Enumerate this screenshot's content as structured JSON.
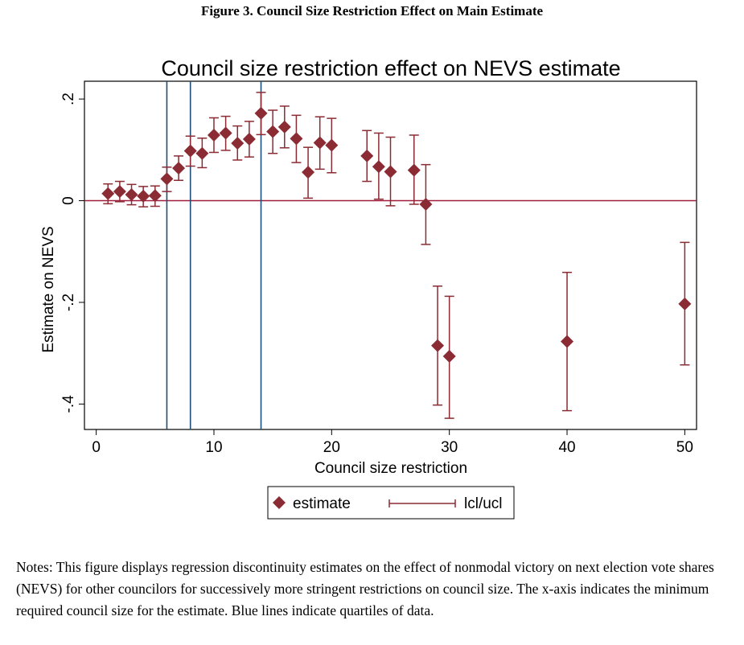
{
  "figure": {
    "caption": "Figure 3. Council Size Restriction Effect on Main Estimate",
    "notes": "Notes: This figure displays regression discontinuity estimates on the effect of nonmodal victory on next election vote shares (NEVS) for other councilors for successively more stringent restrictions on council size. The x-axis indicates the minimum required council size for the estimate. Blue lines indicate quartiles of data."
  },
  "chart_data": {
    "type": "scatter",
    "title": "Council size restriction effect on NEVS estimate",
    "xlabel": "Council size restriction",
    "ylabel": "Estimate on NEVS",
    "xlim": [
      -1,
      51
    ],
    "ylim": [
      -0.45,
      0.235
    ],
    "xticks": [
      0,
      10,
      20,
      30,
      40,
      50
    ],
    "xtick_labels": [
      "0",
      "10",
      "20",
      "30",
      "40",
      "50"
    ],
    "yticks": [
      0.2,
      0,
      -0.2,
      -0.4
    ],
    "ytick_labels": [
      ".2",
      "0",
      "-.2",
      "-.4"
    ],
    "zero_line": 0,
    "quartile_lines_x": [
      6,
      8,
      14
    ],
    "legend": {
      "placement": "bottom-center",
      "entries": [
        "estimate",
        "lcl/ucl"
      ]
    },
    "colors": {
      "marker": "#8b2b33",
      "ci": "#8b2b33",
      "zero_line": "#a01b3c",
      "quartile_lines": "#1f4e79"
    },
    "series": [
      {
        "name": "estimate",
        "points": [
          {
            "x": 1,
            "y": 0.014,
            "lcl": -0.006,
            "ucl": 0.033
          },
          {
            "x": 2,
            "y": 0.018,
            "lcl": -0.002,
            "ucl": 0.038
          },
          {
            "x": 3,
            "y": 0.012,
            "lcl": -0.008,
            "ucl": 0.032
          },
          {
            "x": 4,
            "y": 0.009,
            "lcl": -0.012,
            "ucl": 0.028
          },
          {
            "x": 5,
            "y": 0.01,
            "lcl": -0.011,
            "ucl": 0.029
          },
          {
            "x": 6,
            "y": 0.043,
            "lcl": 0.018,
            "ucl": 0.066
          },
          {
            "x": 7,
            "y": 0.064,
            "lcl": 0.04,
            "ucl": 0.088
          },
          {
            "x": 8,
            "y": 0.098,
            "lcl": 0.068,
            "ucl": 0.127
          },
          {
            "x": 9,
            "y": 0.093,
            "lcl": 0.065,
            "ucl": 0.123
          },
          {
            "x": 10,
            "y": 0.129,
            "lcl": 0.095,
            "ucl": 0.163
          },
          {
            "x": 11,
            "y": 0.133,
            "lcl": 0.099,
            "ucl": 0.166
          },
          {
            "x": 12,
            "y": 0.113,
            "lcl": 0.08,
            "ucl": 0.147
          },
          {
            "x": 13,
            "y": 0.121,
            "lcl": 0.086,
            "ucl": 0.156
          },
          {
            "x": 14,
            "y": 0.172,
            "lcl": 0.13,
            "ucl": 0.213
          },
          {
            "x": 15,
            "y": 0.136,
            "lcl": 0.093,
            "ucl": 0.178
          },
          {
            "x": 16,
            "y": 0.145,
            "lcl": 0.104,
            "ucl": 0.186
          },
          {
            "x": 17,
            "y": 0.122,
            "lcl": 0.075,
            "ucl": 0.168
          },
          {
            "x": 18,
            "y": 0.056,
            "lcl": 0.005,
            "ucl": 0.105
          },
          {
            "x": 19,
            "y": 0.114,
            "lcl": 0.062,
            "ucl": 0.165
          },
          {
            "x": 20,
            "y": 0.109,
            "lcl": 0.055,
            "ucl": 0.162
          },
          {
            "x": 23,
            "y": 0.088,
            "lcl": 0.038,
            "ucl": 0.138
          },
          {
            "x": 24,
            "y": 0.067,
            "lcl": 0.003,
            "ucl": 0.133
          },
          {
            "x": 25,
            "y": 0.057,
            "lcl": -0.01,
            "ucl": 0.125
          },
          {
            "x": 27,
            "y": 0.06,
            "lcl": -0.007,
            "ucl": 0.129
          },
          {
            "x": 28,
            "y": -0.007,
            "lcl": -0.086,
            "ucl": 0.071
          },
          {
            "x": 29,
            "y": -0.285,
            "lcl": -0.402,
            "ucl": -0.168
          },
          {
            "x": 30,
            "y": -0.306,
            "lcl": -0.428,
            "ucl": -0.188
          },
          {
            "x": 40,
            "y": -0.277,
            "lcl": -0.413,
            "ucl": -0.141
          },
          {
            "x": 50,
            "y": -0.203,
            "lcl": -0.323,
            "ucl": -0.082
          }
        ]
      }
    ]
  }
}
